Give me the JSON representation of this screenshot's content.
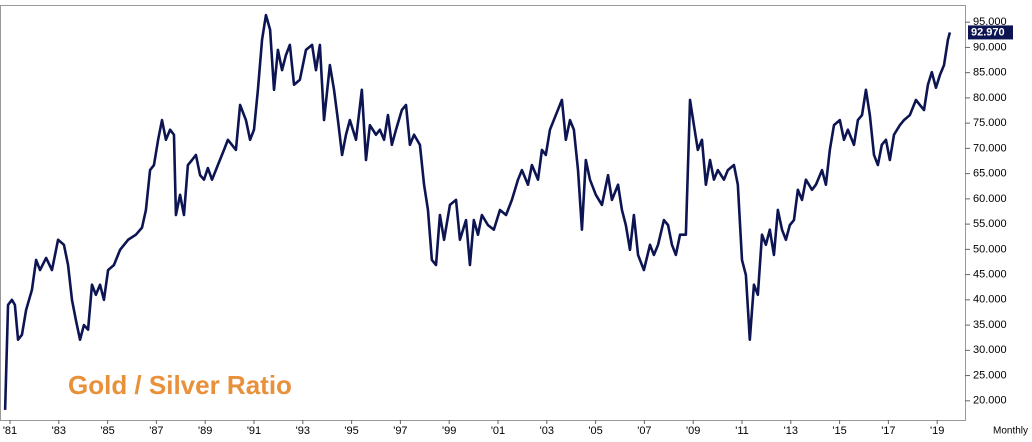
{
  "chart_data": {
    "type": "line",
    "annotation": "Gold / Silver Ratio",
    "frequency": "Monthly",
    "current_label": "92.970",
    "x": [
      1980.8,
      1980.92,
      1981.08,
      1981.2,
      1981.33,
      1981.49,
      1981.66,
      1981.9,
      1982.07,
      1982.23,
      1982.48,
      1982.72,
      1982.97,
      1983.21,
      1983.38,
      1983.54,
      1983.7,
      1983.87,
      1984.03,
      1984.2,
      1984.36,
      1984.52,
      1984.69,
      1984.85,
      1985.02,
      1985.26,
      1985.51,
      1985.84,
      1986.16,
      1986.41,
      1986.57,
      1986.74,
      1986.9,
      1987.07,
      1987.23,
      1987.39,
      1987.56,
      1987.72,
      1987.8,
      1987.97,
      1988.13,
      1988.29,
      1988.46,
      1988.62,
      1988.79,
      1988.95,
      1989.11,
      1989.28,
      1989.52,
      1989.77,
      1989.93,
      1990.26,
      1990.43,
      1990.67,
      1990.84,
      1991.0,
      1991.16,
      1991.33,
      1991.49,
      1991.66,
      1991.82,
      1991.98,
      1992.15,
      1992.31,
      1992.47,
      1992.64,
      1992.88,
      1993.13,
      1993.38,
      1993.54,
      1993.7,
      1993.87,
      1994.11,
      1994.28,
      1994.44,
      1994.61,
      1994.77,
      1994.93,
      1995.18,
      1995.42,
      1995.59,
      1995.75,
      1996.0,
      1996.16,
      1996.33,
      1996.49,
      1996.65,
      1996.82,
      1997.06,
      1997.23,
      1997.39,
      1997.56,
      1997.8,
      1997.97,
      1998.13,
      1998.29,
      1998.46,
      1998.62,
      1998.79,
      1999.03,
      1999.28,
      1999.44,
      1999.69,
      1999.85,
      2000.01,
      2000.18,
      2000.34,
      2000.59,
      2000.83,
      2001.08,
      2001.33,
      2001.57,
      2001.82,
      2001.98,
      2002.23,
      2002.39,
      2002.64,
      2002.8,
      2002.96,
      2003.13,
      2003.37,
      2003.62,
      2003.78,
      2003.95,
      2004.11,
      2004.28,
      2004.44,
      2004.6,
      2004.77,
      2005.01,
      2005.26,
      2005.51,
      2005.67,
      2005.92,
      2006.08,
      2006.24,
      2006.41,
      2006.57,
      2006.74,
      2006.98,
      2007.23,
      2007.39,
      2007.56,
      2007.8,
      2007.97,
      2008.13,
      2008.29,
      2008.46,
      2008.7,
      2008.87,
      2009.03,
      2009.19,
      2009.36,
      2009.52,
      2009.69,
      2009.85,
      2010.01,
      2010.26,
      2010.42,
      2010.67,
      2010.83,
      2011.0,
      2011.16,
      2011.32,
      2011.49,
      2011.65,
      2011.82,
      2011.98,
      2012.14,
      2012.31,
      2012.47,
      2012.64,
      2012.8,
      2012.96,
      2013.13,
      2013.29,
      2013.46,
      2013.62,
      2013.87,
      2014.03,
      2014.28,
      2014.44,
      2014.6,
      2014.77,
      2015.01,
      2015.18,
      2015.34,
      2015.59,
      2015.75,
      2015.92,
      2016.08,
      2016.24,
      2016.41,
      2016.57,
      2016.73,
      2016.9,
      2017.06,
      2017.23,
      2017.47,
      2017.64,
      2017.88,
      2018.13,
      2018.29,
      2018.46,
      2018.62,
      2018.78,
      2018.95,
      2019.11,
      2019.28,
      2019.44,
      2019.52
    ],
    "series": [
      {
        "name": "Gold / Silver Ratio",
        "color": "#0d1452",
        "values": [
          18.2,
          39.0,
          40.0,
          39.0,
          32.1,
          33.1,
          38.0,
          42.0,
          47.9,
          45.9,
          48.3,
          45.9,
          51.9,
          50.9,
          46.9,
          40.0,
          36.0,
          32.1,
          35.0,
          34.1,
          43.0,
          41.0,
          43.0,
          40.0,
          45.9,
          46.9,
          49.9,
          51.9,
          52.9,
          54.3,
          57.8,
          65.7,
          66.7,
          71.7,
          75.6,
          71.7,
          73.7,
          72.7,
          56.8,
          60.8,
          56.8,
          66.7,
          67.7,
          68.7,
          64.7,
          63.8,
          66.1,
          63.8,
          66.7,
          69.7,
          71.7,
          69.7,
          78.6,
          75.6,
          71.7,
          73.7,
          81.6,
          91.5,
          96.4,
          93.5,
          81.6,
          89.5,
          85.5,
          88.5,
          90.5,
          82.6,
          83.6,
          89.5,
          90.5,
          85.5,
          90.5,
          75.6,
          86.5,
          81.6,
          75.6,
          68.7,
          72.7,
          75.6,
          71.7,
          81.6,
          67.7,
          74.6,
          72.7,
          73.7,
          71.7,
          76.6,
          70.7,
          73.7,
          77.6,
          78.6,
          70.7,
          72.7,
          70.7,
          62.8,
          57.8,
          47.9,
          46.9,
          56.8,
          51.9,
          58.8,
          59.8,
          51.9,
          55.8,
          46.9,
          55.8,
          52.9,
          56.8,
          54.8,
          53.9,
          57.8,
          56.8,
          59.8,
          63.8,
          65.7,
          62.8,
          66.7,
          63.8,
          69.7,
          68.7,
          73.7,
          76.6,
          79.6,
          71.7,
          75.6,
          73.7,
          65.7,
          53.9,
          67.7,
          63.8,
          60.8,
          58.8,
          64.7,
          59.8,
          62.8,
          57.8,
          54.8,
          49.9,
          56.8,
          48.9,
          45.9,
          50.9,
          48.9,
          50.9,
          55.8,
          54.8,
          50.9,
          48.9,
          52.9,
          52.9,
          79.6,
          74.6,
          69.7,
          71.7,
          62.8,
          67.7,
          63.8,
          65.7,
          63.8,
          65.7,
          66.7,
          62.8,
          47.9,
          44.9,
          32.1,
          43.0,
          41.0,
          52.9,
          50.9,
          53.9,
          48.9,
          57.8,
          53.9,
          51.9,
          54.8,
          55.8,
          61.8,
          59.8,
          63.8,
          61.8,
          62.8,
          65.7,
          62.8,
          69.7,
          74.6,
          75.6,
          71.7,
          73.7,
          70.7,
          75.6,
          76.6,
          81.6,
          76.6,
          68.7,
          66.7,
          70.7,
          71.7,
          67.7,
          72.7,
          74.6,
          75.6,
          76.6,
          79.6,
          78.6,
          77.6,
          82.6,
          85.1,
          82.0,
          84.5,
          86.5,
          91.5,
          92.97
        ]
      }
    ],
    "xlim": [
      1980.59,
      2020.14
    ],
    "ylim": [
      16.2,
      98.4
    ],
    "xticks": [
      {
        "value": 1981,
        "label": "'81"
      },
      {
        "value": 1983,
        "label": "'83"
      },
      {
        "value": 1985,
        "label": "'85"
      },
      {
        "value": 1987,
        "label": "'87"
      },
      {
        "value": 1989,
        "label": "'89"
      },
      {
        "value": 1991,
        "label": "'91"
      },
      {
        "value": 1993,
        "label": "'93"
      },
      {
        "value": 1995,
        "label": "'95"
      },
      {
        "value": 1997,
        "label": "'97"
      },
      {
        "value": 1999,
        "label": "'99"
      },
      {
        "value": 2001,
        "label": "'01"
      },
      {
        "value": 2003,
        "label": "'03"
      },
      {
        "value": 2005,
        "label": "'05"
      },
      {
        "value": 2007,
        "label": "'07"
      },
      {
        "value": 2009,
        "label": "'09"
      },
      {
        "value": 2011,
        "label": "'11"
      },
      {
        "value": 2013,
        "label": "'13"
      },
      {
        "value": 2015,
        "label": "'15"
      },
      {
        "value": 2017,
        "label": "'17"
      },
      {
        "value": 2019,
        "label": "'19"
      }
    ],
    "yticks": [
      {
        "value": 20,
        "label": "20.000"
      },
      {
        "value": 25,
        "label": "25.000"
      },
      {
        "value": 30,
        "label": "30.000"
      },
      {
        "value": 35,
        "label": "35.000"
      },
      {
        "value": 40,
        "label": "40.000"
      },
      {
        "value": 45,
        "label": "45.000"
      },
      {
        "value": 50,
        "label": "50.000"
      },
      {
        "value": 55,
        "label": "55.000"
      },
      {
        "value": 60,
        "label": "60.000"
      },
      {
        "value": 65,
        "label": "65.000"
      },
      {
        "value": 70,
        "label": "70.000"
      },
      {
        "value": 75,
        "label": "75.000"
      },
      {
        "value": 80,
        "label": "80.000"
      },
      {
        "value": 85,
        "label": "85.000"
      },
      {
        "value": 90,
        "label": "90.000"
      },
      {
        "value": 95,
        "label": "95.000"
      }
    ],
    "grid": false
  }
}
